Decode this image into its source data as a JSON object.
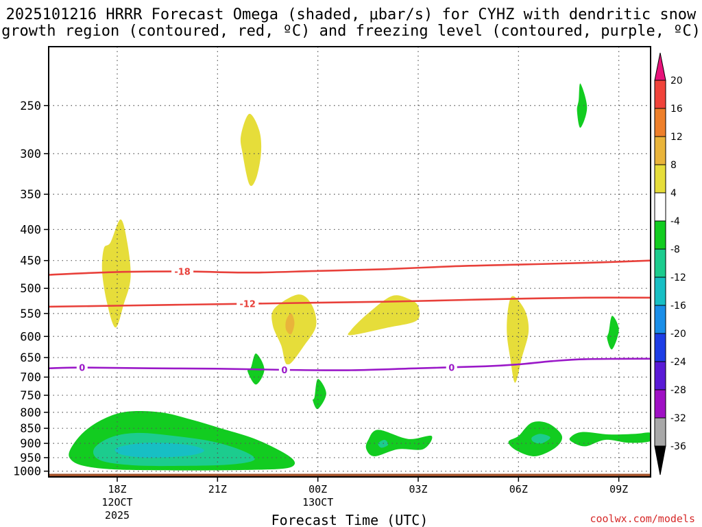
{
  "chart_data": {
    "type": "contour",
    "title_line1": "2025101216 HRRR Forecast Omega (shaded, μbar/s) for CYHZ with dendritic snow",
    "title_line2": "growth region (contoured, red, ºC) and freezing level (contoured, purple, ºC)",
    "xlabel": "Forecast Time (UTC)",
    "credit": "coolwx.com/models",
    "x_hours_range": [
      15.95,
      33.95
    ],
    "x_ticks": [
      {
        "hour": 18,
        "label": "18Z",
        "sub1": "12OCT",
        "sub2": "2025"
      },
      {
        "hour": 21,
        "label": "21Z",
        "sub1": "",
        "sub2": ""
      },
      {
        "hour": 24,
        "label": "00Z",
        "sub1": "13OCT",
        "sub2": ""
      },
      {
        "hour": 27,
        "label": "03Z",
        "sub1": "",
        "sub2": ""
      },
      {
        "hour": 30,
        "label": "06Z",
        "sub1": "",
        "sub2": ""
      },
      {
        "hour": 33,
        "label": "09Z",
        "sub1": "",
        "sub2": ""
      }
    ],
    "y_pressure_range": [
      1022,
      200
    ],
    "y_ticks": [
      250,
      300,
      350,
      400,
      450,
      500,
      550,
      600,
      650,
      700,
      750,
      800,
      850,
      900,
      950,
      1000
    ],
    "colorbar": {
      "ticks": [
        "20",
        "16",
        "12",
        "8",
        "4",
        "-4",
        "-8",
        "-12",
        "-16",
        "-20",
        "-24",
        "-28",
        "-32",
        "-36"
      ],
      "levels": [
        {
          "lo": 16,
          "hi": 20,
          "color": "#f0433a"
        },
        {
          "lo": 12,
          "hi": 16,
          "color": "#ee7f2a"
        },
        {
          "lo": 8,
          "hi": 12,
          "color": "#e9b43a"
        },
        {
          "lo": 4,
          "hi": 8,
          "color": "#e6dd3a"
        },
        {
          "lo": -4,
          "hi": 4,
          "color": "#ffffff"
        },
        {
          "lo": -8,
          "hi": -4,
          "color": "#12cc20"
        },
        {
          "lo": -12,
          "hi": -8,
          "color": "#1ccc8e"
        },
        {
          "lo": -16,
          "hi": -12,
          "color": "#17bfc4"
        },
        {
          "lo": -20,
          "hi": -16,
          "color": "#1a8ee8"
        },
        {
          "lo": -24,
          "hi": -20,
          "color": "#1e3ee6"
        },
        {
          "lo": -28,
          "hi": -24,
          "color": "#5a1ad6"
        },
        {
          "lo": -32,
          "hi": -28,
          "color": "#9f10c4"
        },
        {
          "lo": -36,
          "hi": -32,
          "color": "#a8a8a8"
        }
      ],
      "top_arrow_color": "#e8127a",
      "bottom_arrow_color": "#000000"
    },
    "temperature_contours": [
      {
        "label": "-18",
        "color": "#e8403a",
        "label_hour": 19.95,
        "points": [
          [
            15.95,
            475
          ],
          [
            18,
            470
          ],
          [
            20,
            469
          ],
          [
            22,
            471
          ],
          [
            24,
            468
          ],
          [
            26,
            465
          ],
          [
            28,
            460
          ],
          [
            30,
            457
          ],
          [
            32,
            454
          ],
          [
            33.95,
            450
          ]
        ]
      },
      {
        "label": "-12",
        "color": "#e8403a",
        "label_hour": 21.9,
        "points": [
          [
            15.95,
            536
          ],
          [
            18,
            534
          ],
          [
            20,
            532
          ],
          [
            22,
            530
          ],
          [
            24,
            528
          ],
          [
            26,
            526
          ],
          [
            28,
            523
          ],
          [
            30,
            520
          ],
          [
            32,
            518
          ],
          [
            33.95,
            518
          ]
        ]
      },
      {
        "label": "0",
        "color": "#9a18c8",
        "label_hour": 16.95,
        "points": [
          [
            15.95,
            677
          ],
          [
            17,
            675
          ],
          [
            19,
            677
          ],
          [
            21,
            678
          ],
          [
            23,
            681
          ],
          [
            25,
            682
          ],
          [
            27,
            677
          ],
          [
            29,
            672
          ],
          [
            30,
            667
          ],
          [
            31,
            659
          ],
          [
            32,
            654
          ],
          [
            33.95,
            653
          ]
        ]
      }
    ],
    "freezing_level_extra_labels": [
      {
        "label": "0",
        "hour": 23.0
      },
      {
        "label": "0",
        "hour": 28.0
      }
    ],
    "omega_regions": [
      {
        "value": -4,
        "color": "#12cc20",
        "points": [
          [
            16.6,
            920
          ],
          [
            17.0,
            862
          ],
          [
            17.6,
            820
          ],
          [
            18.3,
            798
          ],
          [
            19.3,
            800
          ],
          [
            20.2,
            822
          ],
          [
            21.1,
            850
          ],
          [
            22.0,
            880
          ],
          [
            22.7,
            915
          ],
          [
            23.2,
            950
          ],
          [
            23.3,
            975
          ],
          [
            23.0,
            990
          ],
          [
            22.0,
            995
          ],
          [
            20.0,
            997
          ],
          [
            18.0,
            994
          ],
          [
            17.0,
            980
          ],
          [
            16.6,
            955
          ]
        ]
      },
      {
        "value": -8,
        "color": "#1ccc8e",
        "points": [
          [
            17.3,
            920
          ],
          [
            17.8,
            880
          ],
          [
            18.6,
            865
          ],
          [
            19.7,
            875
          ],
          [
            20.9,
            895
          ],
          [
            21.8,
            928
          ],
          [
            22.1,
            958
          ],
          [
            21.4,
            975
          ],
          [
            20.0,
            980
          ],
          [
            18.5,
            978
          ],
          [
            17.5,
            960
          ]
        ]
      },
      {
        "value": -12,
        "color": "#17bfc4",
        "points": [
          [
            18.0,
            915
          ],
          [
            18.9,
            898
          ],
          [
            20.1,
            905
          ],
          [
            20.6,
            925
          ],
          [
            20.1,
            943
          ],
          [
            18.9,
            950
          ],
          [
            18.1,
            938
          ]
        ]
      },
      {
        "value": 4,
        "color": "#e6dd3a",
        "points": [
          [
            17.8,
            420
          ],
          [
            18.1,
            385
          ],
          [
            18.3,
            420
          ],
          [
            18.4,
            480
          ],
          [
            18.2,
            530
          ],
          [
            17.95,
            580
          ],
          [
            17.7,
            530
          ],
          [
            17.55,
            470
          ],
          [
            17.6,
            430
          ]
        ]
      },
      {
        "value": 4,
        "color": "#e6dd3a",
        "points": [
          [
            21.7,
            280
          ],
          [
            21.95,
            258
          ],
          [
            22.25,
            275
          ],
          [
            22.3,
            300
          ],
          [
            22.15,
            330
          ],
          [
            21.95,
            337
          ],
          [
            21.75,
            300
          ]
        ]
      },
      {
        "value": 4,
        "color": "#e6dd3a",
        "points": [
          [
            22.7,
            540
          ],
          [
            23.4,
            512
          ],
          [
            23.8,
            530
          ],
          [
            23.95,
            575
          ],
          [
            23.6,
            620
          ],
          [
            23.1,
            668
          ],
          [
            22.9,
            620
          ],
          [
            22.65,
            575
          ]
        ]
      },
      {
        "value": 8,
        "color": "#e9b43a",
        "points": [
          [
            23.05,
            565
          ],
          [
            23.2,
            550
          ],
          [
            23.3,
            570
          ],
          [
            23.2,
            595
          ],
          [
            23.05,
            585
          ]
        ]
      },
      {
        "value": 4,
        "color": "#e6dd3a",
        "points": [
          [
            25.0,
            585
          ],
          [
            25.5,
            550
          ],
          [
            26.2,
            515
          ],
          [
            26.7,
            520
          ],
          [
            27.0,
            535
          ],
          [
            26.95,
            565
          ],
          [
            26.1,
            580
          ],
          [
            25.0,
            597
          ]
        ]
      },
      {
        "value": 4,
        "color": "#e6dd3a",
        "points": [
          [
            29.7,
            535
          ],
          [
            29.85,
            515
          ],
          [
            30.2,
            545
          ],
          [
            30.3,
            590
          ],
          [
            30.1,
            650
          ],
          [
            29.9,
            715
          ],
          [
            29.75,
            650
          ],
          [
            29.65,
            590
          ]
        ]
      },
      {
        "value": -4,
        "color": "#12cc20",
        "points": [
          [
            22.0,
            675
          ],
          [
            22.15,
            640
          ],
          [
            22.4,
            680
          ],
          [
            22.15,
            720
          ],
          [
            21.9,
            685
          ]
        ]
      },
      {
        "value": -4,
        "color": "#12cc20",
        "points": [
          [
            23.9,
            755
          ],
          [
            24.0,
            705
          ],
          [
            24.25,
            745
          ],
          [
            24.0,
            790
          ],
          [
            23.85,
            765
          ]
        ]
      },
      {
        "value": -4,
        "color": "#12cc20",
        "points": [
          [
            25.5,
            890
          ],
          [
            25.8,
            855
          ],
          [
            26.7,
            885
          ],
          [
            27.4,
            875
          ],
          [
            27.15,
            920
          ],
          [
            26.4,
            920
          ],
          [
            25.7,
            945
          ],
          [
            25.45,
            920
          ]
        ]
      },
      {
        "value": -8,
        "color": "#1ccc8e",
        "points": [
          [
            25.8,
            900
          ],
          [
            26.0,
            888
          ],
          [
            26.1,
            905
          ],
          [
            25.9,
            915
          ]
        ]
      },
      {
        "value": -4,
        "color": "#12cc20",
        "points": [
          [
            30.0,
            875
          ],
          [
            30.4,
            832
          ],
          [
            30.9,
            835
          ],
          [
            31.3,
            875
          ],
          [
            31.1,
            915
          ],
          [
            30.5,
            945
          ],
          [
            29.95,
            925
          ],
          [
            29.7,
            895
          ]
        ]
      },
      {
        "value": -8,
        "color": "#1ccc8e",
        "points": [
          [
            30.4,
            880
          ],
          [
            30.65,
            868
          ],
          [
            30.95,
            880
          ],
          [
            30.7,
            900
          ],
          [
            30.45,
            895
          ]
        ]
      },
      {
        "value": -4,
        "color": "#12cc20",
        "points": [
          [
            31.55,
            880
          ],
          [
            31.9,
            862
          ],
          [
            32.7,
            870
          ],
          [
            33.5,
            868
          ],
          [
            33.95,
            865
          ],
          [
            33.95,
            892
          ],
          [
            33.3,
            898
          ],
          [
            32.6,
            888
          ],
          [
            32.0,
            910
          ],
          [
            31.6,
            895
          ]
        ]
      },
      {
        "value": -4,
        "color": "#12cc20",
        "points": [
          [
            31.8,
            245
          ],
          [
            31.85,
            230
          ],
          [
            32.05,
            252
          ],
          [
            31.85,
            272
          ],
          [
            31.75,
            255
          ]
        ]
      },
      {
        "value": -4,
        "color": "#12cc20",
        "points": [
          [
            32.7,
            590
          ],
          [
            32.8,
            555
          ],
          [
            33.0,
            585
          ],
          [
            32.8,
            630
          ],
          [
            32.65,
            605
          ]
        ]
      }
    ],
    "terrain": {
      "color": "#a4532a",
      "surface_pressure": 1010
    }
  }
}
